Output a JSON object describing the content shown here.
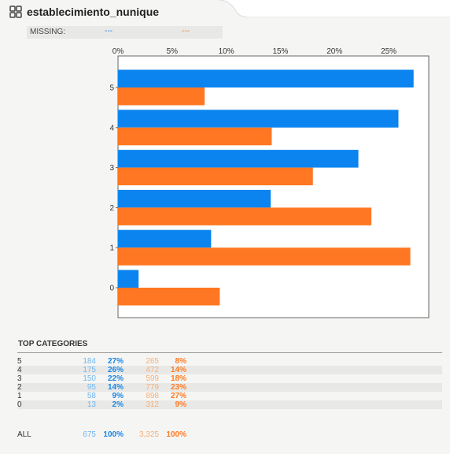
{
  "header": {
    "title": "establecimiento_nunique",
    "icon": "grid-icon"
  },
  "missing": {
    "label": "MISSING:",
    "value_a": "---",
    "value_b": "---"
  },
  "colors": {
    "series_a": "#0b84f0",
    "series_b": "#ff7722",
    "table_count_a": "#6fb6f2",
    "table_count_b": "#f5b07a"
  },
  "chart_data": {
    "type": "bar",
    "orientation": "horizontal",
    "categories": [
      "5",
      "4",
      "3",
      "2",
      "1",
      "0"
    ],
    "series": [
      {
        "values": [
          27.3,
          25.9,
          22.2,
          14.1,
          8.6,
          1.9
        ]
      },
      {
        "values": [
          8.0,
          14.2,
          18.0,
          23.4,
          27.0,
          9.4
        ]
      }
    ],
    "x_ticks": [
      "0%",
      "5%",
      "10%",
      "15%",
      "20%",
      "25%"
    ],
    "x_tick_values": [
      0,
      5,
      10,
      15,
      20,
      25
    ],
    "xlim": [
      0,
      28.7
    ],
    "grid": false
  },
  "table": {
    "title": "TOP CATEGORIES",
    "rows": [
      {
        "category": "5",
        "count_a": "184",
        "pct_a": "27%",
        "count_b": "265",
        "pct_b": "8%"
      },
      {
        "category": "4",
        "count_a": "175",
        "pct_a": "26%",
        "count_b": "472",
        "pct_b": "14%"
      },
      {
        "category": "3",
        "count_a": "150",
        "pct_a": "22%",
        "count_b": "599",
        "pct_b": "18%"
      },
      {
        "category": "2",
        "count_a": "95",
        "pct_a": "14%",
        "count_b": "779",
        "pct_b": "23%"
      },
      {
        "category": "1",
        "count_a": "58",
        "pct_a": "9%",
        "count_b": "898",
        "pct_b": "27%"
      },
      {
        "category": "0",
        "count_a": "13",
        "pct_a": "2%",
        "count_b": "312",
        "pct_b": "9%"
      }
    ],
    "total": {
      "category": "ALL",
      "count_a": "675",
      "pct_a": "100%",
      "count_b": "3,325",
      "pct_b": "100%"
    }
  }
}
